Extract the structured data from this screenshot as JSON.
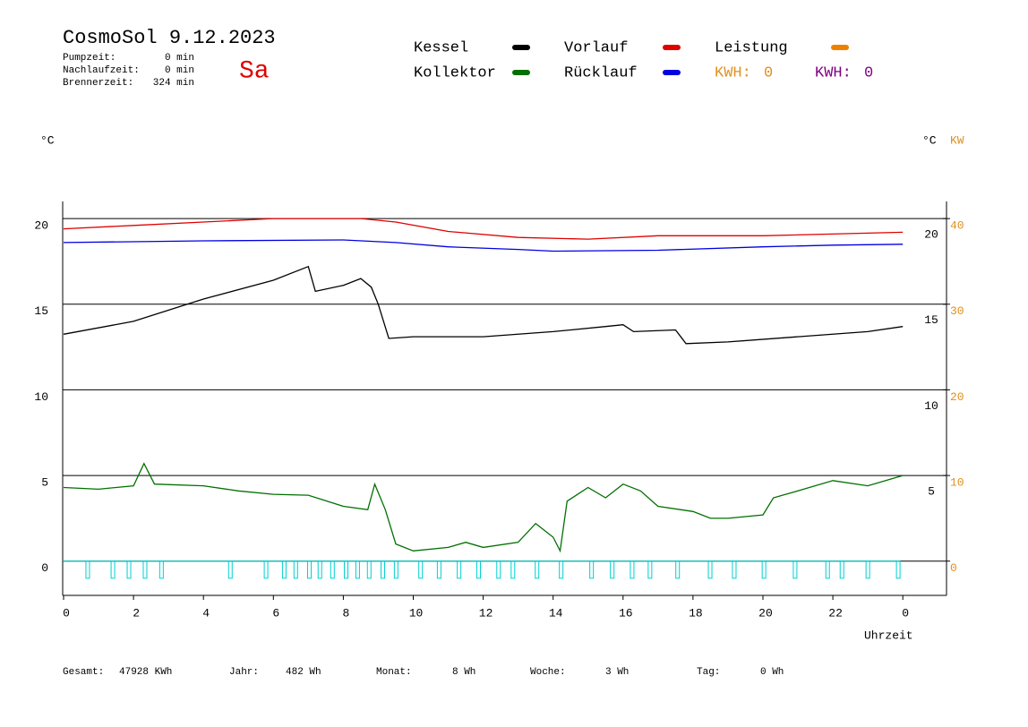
{
  "chart_data": {
    "type": "line",
    "title": "CosmoSol 9.12.2023",
    "weekday": "Sa",
    "info": [
      {
        "label": "Pumpzeit:",
        "value": "0 min"
      },
      {
        "label": "Nachlaufzeit:",
        "value": "0 min"
      },
      {
        "label": "Brennerzeit:",
        "value": "324 min"
      }
    ],
    "ylabel": "°C",
    "y2label_left": "°C",
    "y2label": "KW",
    "xlabel": "Uhrzeit",
    "kwh": [
      {
        "label": "KWH:",
        "value": 0,
        "color": "#e09020"
      },
      {
        "label": "KWH:",
        "value": 0,
        "color": "#800080"
      }
    ],
    "xlim": [
      0,
      25.25
    ],
    "xticks": [
      0,
      2,
      4,
      6,
      8,
      10,
      12,
      14,
      16,
      18,
      20,
      22,
      {
        "value": 24,
        "label": "0"
      }
    ],
    "ylim": [
      -2,
      21
    ],
    "yticks": [
      0,
      5,
      10,
      15,
      20
    ],
    "inner_yticks": [
      5,
      10,
      15,
      20
    ],
    "y2lim": [
      -4,
      42
    ],
    "y2ticks": [
      0,
      10,
      20,
      30,
      40
    ],
    "grid": true,
    "series": [
      {
        "name": "Kessel",
        "color": "#000000",
        "x": [
          0,
          2,
          4,
          6,
          7,
          7.2,
          8,
          8.5,
          8.8,
          9,
          9.3,
          10,
          12,
          14,
          15.5,
          16,
          16.3,
          17.5,
          17.8,
          19,
          21,
          23,
          24
        ],
        "values": [
          13.25,
          14.0,
          15.3,
          16.4,
          17.2,
          15.75,
          16.1,
          16.5,
          16.0,
          15.0,
          13.0,
          13.1,
          13.1,
          13.4,
          13.7,
          13.8,
          13.4,
          13.5,
          12.7,
          12.8,
          13.1,
          13.4,
          13.7
        ]
      },
      {
        "name": "Kollektor",
        "color": "#007000",
        "x": [
          0,
          1,
          2,
          2.3,
          2.6,
          4,
          5,
          6,
          7,
          8,
          8.7,
          8.9,
          9.2,
          9.5,
          10,
          11,
          11.5,
          12,
          13,
          13.5,
          14,
          14.2,
          14.4,
          15,
          15.5,
          16,
          16.5,
          17,
          18,
          18.5,
          19,
          20,
          20.3,
          21,
          22,
          23,
          24
        ],
        "values": [
          4.3,
          4.2,
          4.4,
          5.7,
          4.5,
          4.4,
          4.1,
          3.9,
          3.85,
          3.2,
          3.0,
          4.5,
          3.0,
          1.0,
          0.6,
          0.8,
          1.1,
          0.8,
          1.1,
          2.2,
          1.4,
          0.6,
          3.5,
          4.3,
          3.7,
          4.5,
          4.1,
          3.2,
          2.9,
          2.5,
          2.5,
          2.7,
          3.7,
          4.1,
          4.7,
          4.4,
          5.0
        ]
      },
      {
        "name": "Vorlauf",
        "color": "#e00000",
        "x": [
          0,
          2,
          4,
          6,
          8.5,
          9.5,
          11,
          13,
          15,
          17,
          20,
          24
        ],
        "values": [
          19.4,
          19.6,
          19.8,
          20.0,
          20.0,
          19.8,
          19.25,
          18.9,
          18.8,
          19.0,
          19.0,
          19.2
        ]
      },
      {
        "name": "Rücklauf",
        "color": "#0000e0",
        "x": [
          0,
          4,
          8,
          9.5,
          11,
          13,
          14,
          17,
          20,
          22,
          24
        ],
        "values": [
          18.6,
          18.7,
          18.75,
          18.6,
          18.35,
          18.2,
          18.1,
          18.15,
          18.35,
          18.45,
          18.5
        ]
      },
      {
        "name": "Leistung",
        "color": "#f08000",
        "axis": "y2",
        "x": [],
        "values": []
      }
    ],
    "pulse_color": "#00d0d0",
    "pulse_depth": -1,
    "pulse_times": [
      0.69,
      1.41,
      1.87,
      2.33,
      2.8,
      4.77,
      5.79,
      6.31,
      6.64,
      7.03,
      7.33,
      7.69,
      8.08,
      8.41,
      8.74,
      9.13,
      9.51,
      10.21,
      10.74,
      11.31,
      11.87,
      12.44,
      12.85,
      13.54,
      14.23,
      15.1,
      15.69,
      16.26,
      16.77,
      17.56,
      18.49,
      19.18,
      20.03,
      20.92,
      21.85,
      22.26,
      23.0,
      23.87
    ],
    "footer": [
      {
        "label": "Gesamt:",
        "value": "47928 KWh"
      },
      {
        "label": "Jahr:",
        "value": "482 Wh"
      },
      {
        "label": "Monat:",
        "value": "8 Wh"
      },
      {
        "label": "Woche:",
        "value": "3 Wh"
      },
      {
        "label": "Tag:",
        "value": "0 Wh"
      }
    ]
  }
}
